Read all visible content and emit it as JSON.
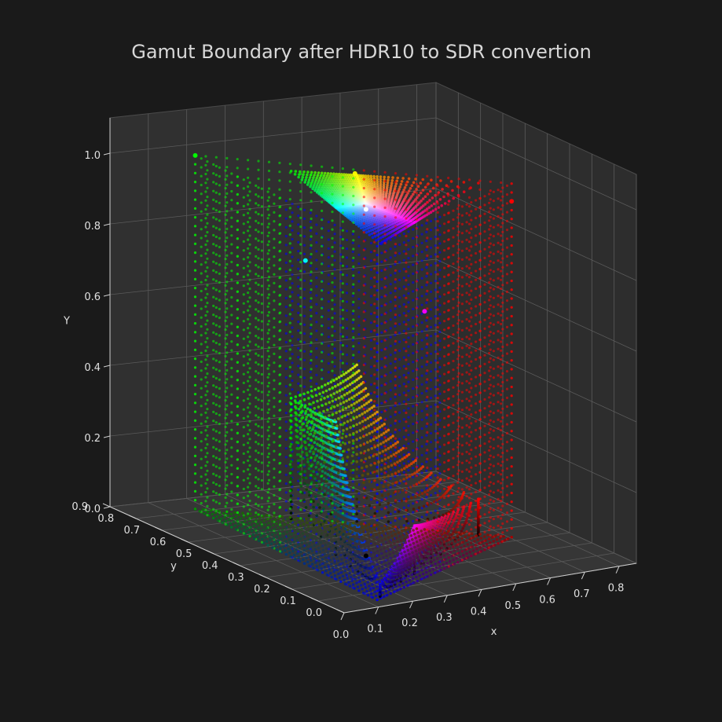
{
  "chart_data": {
    "type": "scatter",
    "projection": "3d",
    "title": "Gamut Boundary after HDR10 to SDR convertion",
    "xlabel": "x",
    "ylabel": "y",
    "zlabel": "Y",
    "xlim": [
      0.0,
      0.85
    ],
    "ylim": [
      0.0,
      0.9
    ],
    "zlim": [
      0.0,
      1.1
    ],
    "x_ticks": [
      "0.0",
      "0.1",
      "0.2",
      "0.3",
      "0.4",
      "0.5",
      "0.6",
      "0.7",
      "0.8"
    ],
    "y_ticks": [
      "0.0",
      "0.1",
      "0.2",
      "0.3",
      "0.4",
      "0.5",
      "0.6",
      "0.7",
      "0.8",
      "0.9"
    ],
    "z_ticks": [
      "0.0",
      "0.2",
      "0.4",
      "0.6",
      "0.8",
      "1.0"
    ],
    "grid": true,
    "background": "#1a1a1a",
    "pane_color": "#333333",
    "gamut_primaries": {
      "red": {
        "x": 0.708,
        "y": 0.292,
        "color": "#ff0000"
      },
      "green": {
        "x": 0.17,
        "y": 0.797,
        "color": "#00ff00"
      },
      "blue": {
        "x": 0.131,
        "y": 0.046,
        "color": "#0000ff"
      },
      "white": {
        "x": 0.3127,
        "y": 0.329
      }
    },
    "boundary_points": [
      {
        "label": "green-top",
        "x": 0.17,
        "y": 0.797,
        "Y": 1.0,
        "color": "#00ff00"
      },
      {
        "label": "yellow-top",
        "x": 0.44,
        "y": 0.54,
        "Y": 0.99,
        "color": "#ffff00"
      },
      {
        "label": "cyan",
        "x": 0.16,
        "y": 0.36,
        "Y": 0.85,
        "color": "#00ffff"
      },
      {
        "label": "white",
        "x": 0.3127,
        "y": 0.329,
        "Y": 0.98,
        "color": "#ffffff"
      },
      {
        "label": "magenta",
        "x": 0.34,
        "y": 0.14,
        "Y": 0.75,
        "color": "#ff00ff"
      },
      {
        "label": "red-top",
        "x": 0.708,
        "y": 0.292,
        "Y": 0.95,
        "color": "#ff0000"
      },
      {
        "label": "black",
        "x": 0.3127,
        "y": 0.329,
        "Y": 0.0,
        "color": "#000000"
      }
    ]
  }
}
